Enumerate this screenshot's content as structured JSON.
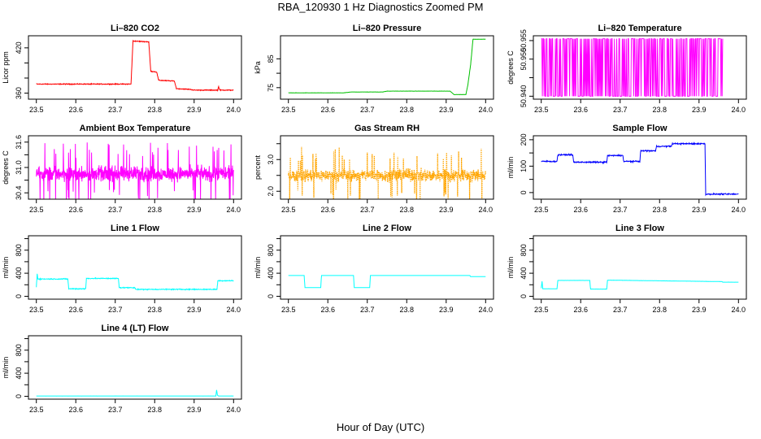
{
  "figure": {
    "title": "RBA_120930  1 Hz Diagnostics Zoomed PM",
    "xlabel": "Hour of Day (UTC)"
  },
  "chart_data": [
    {
      "id": "co2",
      "type": "line",
      "title": "Li–820 CO2",
      "ylabel": "Licor ppm",
      "xlim": [
        23.48,
        24.02
      ],
      "ylim": [
        352,
        436
      ],
      "xticks": [
        23.5,
        23.6,
        23.7,
        23.8,
        23.9,
        24.0
      ],
      "xtick_labels": [
        "23.5",
        "23.6",
        "23.7",
        "23.8",
        "23.9",
        "24.0"
      ],
      "yticks": [
        360,
        380,
        400,
        420
      ],
      "ytick_labels": [
        "360",
        "",
        "",
        "420"
      ],
      "color": "#ff0000",
      "series": [
        {
          "name": "CO2",
          "style": "steps",
          "noise": 0.8,
          "x": [
            23.5,
            23.74,
            23.745,
            23.785,
            23.79,
            23.805,
            23.81,
            23.85,
            23.855,
            23.89,
            23.9,
            23.96,
            23.962,
            23.965,
            23.97,
            24.0
          ],
          "y": [
            372,
            372,
            429,
            428,
            389,
            388,
            377,
            376,
            366,
            365,
            364,
            364,
            369,
            364,
            364,
            364
          ]
        }
      ]
    },
    {
      "id": "pressure",
      "type": "line",
      "title": "Li–820 Pressure",
      "ylabel": "kPa",
      "xlim": [
        23.48,
        24.02
      ],
      "ylim": [
        71,
        93
      ],
      "xticks": [
        23.5,
        23.6,
        23.7,
        23.8,
        23.9,
        24.0
      ],
      "xtick_labels": [
        "23.5",
        "23.6",
        "23.7",
        "23.8",
        "23.9",
        "24.0"
      ],
      "yticks": [
        75,
        80,
        85
      ],
      "ytick_labels": [
        "75",
        "",
        "85"
      ],
      "color": "#00c000",
      "series": [
        {
          "name": "Pressure",
          "style": "steps",
          "noise": 0.05,
          "x": [
            23.5,
            23.64,
            23.66,
            23.74,
            23.75,
            23.91,
            23.92,
            23.95,
            23.955,
            23.962,
            23.968,
            24.0
          ],
          "y": [
            73.2,
            73.2,
            73.5,
            73.5,
            73.8,
            73.8,
            72.6,
            72.6,
            76,
            83,
            91.8,
            91.8
          ]
        }
      ]
    },
    {
      "id": "licor_temp",
      "type": "line",
      "title": "Li–820 Temperature",
      "ylabel": "degrees C",
      "xlim": [
        23.48,
        24.02
      ],
      "ylim": [
        50.9392,
        50.9563
      ],
      "xticks": [
        23.5,
        23.6,
        23.7,
        23.8,
        23.9,
        24.0
      ],
      "xtick_labels": [
        "23.5",
        "23.6",
        "23.7",
        "23.8",
        "23.9",
        "24.0"
      ],
      "yticks": [
        50.94,
        50.945,
        50.95,
        50.955
      ],
      "ytick_labels": [
        "50.940",
        "",
        "50.950",
        "50.955"
      ],
      "color": "#ff00ff",
      "series": [
        {
          "name": "Temperature",
          "style": "binary",
          "low": 50.94,
          "high": 50.9555,
          "x": [
            23.5,
            23.96
          ],
          "y": [
            50.94,
            50.9555
          ]
        }
      ]
    },
    {
      "id": "box_temp",
      "type": "line",
      "title": "Ambient Box Temperature",
      "ylabel": "degrees C",
      "xlim": [
        23.48,
        24.02
      ],
      "ylim": [
        30.25,
        31.75
      ],
      "xticks": [
        23.5,
        23.6,
        23.7,
        23.8,
        23.9,
        24.0
      ],
      "xtick_labels": [
        "23.5",
        "23.6",
        "23.7",
        "23.8",
        "23.9",
        "24.0"
      ],
      "yticks": [
        30.4,
        30.7,
        31.0,
        31.3,
        31.6
      ],
      "ytick_labels": [
        "30.4",
        "",
        "31.0",
        "",
        "31.6"
      ],
      "color": "#ff00ff",
      "series": [
        {
          "name": "Box temperature",
          "style": "noise",
          "mean": 30.85,
          "spread": 0.25,
          "spike": 0.75,
          "x": [
            23.5,
            24.0
          ],
          "y": [
            30.85,
            30.85
          ]
        }
      ]
    },
    {
      "id": "rh",
      "type": "line",
      "title": "Gas Stream RH",
      "ylabel": "percent",
      "xlim": [
        23.48,
        24.02
      ],
      "ylim": [
        1.75,
        3.75
      ],
      "xticks": [
        23.5,
        23.6,
        23.7,
        23.8,
        23.9,
        24.0
      ],
      "xtick_labels": [
        "23.5",
        "23.6",
        "23.7",
        "23.8",
        "23.9",
        "24.0"
      ],
      "yticks": [
        2.0,
        2.5,
        3.0,
        3.5
      ],
      "ytick_labels": [
        "2.0",
        "",
        "3.0",
        ""
      ],
      "color": "#ffa500",
      "series": [
        {
          "name": "RH",
          "style": "noise",
          "mean": 2.5,
          "spread": 0.28,
          "spike": 0.9,
          "dotted": true,
          "x": [
            23.5,
            24.0
          ],
          "y": [
            2.5,
            2.5
          ]
        }
      ]
    },
    {
      "id": "sample_flow",
      "type": "line",
      "title": "Sample Flow",
      "ylabel": "ml/min",
      "xlim": [
        23.48,
        24.02
      ],
      "ylim": [
        -25,
        215
      ],
      "xticks": [
        23.5,
        23.6,
        23.7,
        23.8,
        23.9,
        24.0
      ],
      "xtick_labels": [
        "23.5",
        "23.6",
        "23.7",
        "23.8",
        "23.9",
        "24.0"
      ],
      "yticks": [
        0,
        50,
        100,
        150,
        200
      ],
      "ytick_labels": [
        "0",
        "",
        "100",
        "",
        "200"
      ],
      "color": "#0000ff",
      "series": [
        {
          "name": "Sample flow",
          "style": "steps",
          "noise": 3.5,
          "x": [
            23.5,
            23.54,
            23.542,
            23.58,
            23.582,
            23.666,
            23.668,
            23.707,
            23.709,
            23.75,
            23.752,
            23.79,
            23.792,
            23.83,
            23.832,
            23.915,
            23.917,
            24.0
          ],
          "y": [
            118,
            118,
            143,
            143,
            115,
            115,
            140,
            140,
            118,
            118,
            158,
            158,
            175,
            175,
            185,
            185,
            -6,
            -6
          ]
        }
      ]
    },
    {
      "id": "line1",
      "type": "line",
      "title": "Line 1 Flow",
      "ylabel": "ml/min",
      "xlim": [
        23.48,
        24.02
      ],
      "ylim": [
        -50,
        1050
      ],
      "xticks": [
        23.5,
        23.6,
        23.7,
        23.8,
        23.9,
        24.0
      ],
      "xtick_labels": [
        "23.5",
        "23.6",
        "23.7",
        "23.8",
        "23.9",
        "24.0"
      ],
      "yticks": [
        0,
        200,
        400,
        600,
        800,
        1000
      ],
      "ytick_labels": [
        "0",
        "",
        "400",
        "",
        "800",
        ""
      ],
      "color": "#00ffff",
      "series": [
        {
          "name": "Line 1",
          "style": "steps",
          "noise": 12,
          "x": [
            23.5,
            23.502,
            23.504,
            23.58,
            23.582,
            23.625,
            23.627,
            23.708,
            23.71,
            23.75,
            23.752,
            23.958,
            23.96,
            24.0
          ],
          "y": [
            160,
            390,
            300,
            300,
            130,
            130,
            310,
            310,
            150,
            150,
            120,
            120,
            270,
            270
          ]
        }
      ]
    },
    {
      "id": "line2",
      "type": "line",
      "title": "Line 2 Flow",
      "ylabel": "ml/min",
      "xlim": [
        23.48,
        24.02
      ],
      "ylim": [
        -50,
        1050
      ],
      "xticks": [
        23.5,
        23.6,
        23.7,
        23.8,
        23.9,
        24.0
      ],
      "xtick_labels": [
        "23.5",
        "23.6",
        "23.7",
        "23.8",
        "23.9",
        "24.0"
      ],
      "yticks": [
        0,
        200,
        400,
        600,
        800,
        1000
      ],
      "ytick_labels": [
        "0",
        "",
        "400",
        "",
        "800",
        ""
      ],
      "color": "#00ffff",
      "series": [
        {
          "name": "Line 2",
          "style": "steps",
          "noise": 0,
          "x": [
            23.5,
            23.54,
            23.542,
            23.582,
            23.584,
            23.665,
            23.667,
            23.706,
            23.708,
            23.96,
            23.962,
            24.0
          ],
          "y": [
            360,
            360,
            150,
            150,
            360,
            360,
            150,
            150,
            360,
            360,
            340,
            340
          ]
        }
      ]
    },
    {
      "id": "line3",
      "type": "line",
      "title": "Line 3 Flow",
      "ylabel": "ml/min",
      "xlim": [
        23.48,
        24.02
      ],
      "ylim": [
        -50,
        1050
      ],
      "xticks": [
        23.5,
        23.6,
        23.7,
        23.8,
        23.9,
        24.0
      ],
      "xtick_labels": [
        "23.5",
        "23.6",
        "23.7",
        "23.8",
        "23.9",
        "24.0"
      ],
      "yticks": [
        0,
        200,
        400,
        600,
        800,
        1000
      ],
      "ytick_labels": [
        "0",
        "",
        "400",
        "",
        "800",
        ""
      ],
      "color": "#00ffff",
      "series": [
        {
          "name": "Line 3",
          "style": "steps",
          "noise": 2,
          "x": [
            23.5,
            23.502,
            23.504,
            23.54,
            23.542,
            23.623,
            23.625,
            23.666,
            23.668,
            23.958,
            23.96,
            24.0
          ],
          "y": [
            140,
            260,
            130,
            130,
            275,
            275,
            125,
            125,
            280,
            255,
            245,
            245
          ]
        }
      ]
    },
    {
      "id": "line4",
      "type": "line",
      "title": "Line 4 (LT) Flow",
      "ylabel": "ml/min",
      "xlim": [
        23.48,
        24.02
      ],
      "ylim": [
        -50,
        1050
      ],
      "xticks": [
        23.5,
        23.6,
        23.7,
        23.8,
        23.9,
        24.0
      ],
      "xtick_labels": [
        "23.5",
        "23.6",
        "23.7",
        "23.8",
        "23.9",
        "24.0"
      ],
      "yticks": [
        0,
        200,
        400,
        600,
        800,
        1000
      ],
      "ytick_labels": [
        "0",
        "",
        "400",
        "",
        "800",
        ""
      ],
      "color": "#00ffff",
      "series": [
        {
          "name": "Line 4",
          "style": "steps",
          "noise": 1,
          "x": [
            23.5,
            23.955,
            23.957,
            23.959,
            23.962,
            24.0
          ],
          "y": [
            5,
            5,
            110,
            20,
            5,
            5
          ]
        }
      ]
    }
  ]
}
